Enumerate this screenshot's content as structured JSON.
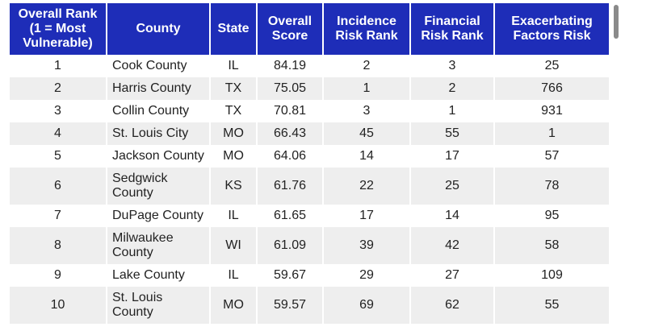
{
  "table": {
    "headers": [
      "Overall Rank (1 = Most Vulnerable)",
      "County",
      "State",
      "Overall Score",
      "Incidence Risk Rank",
      "Financial Risk Rank",
      "Exacerbating Factors Risk"
    ],
    "rows": [
      [
        "1",
        "Cook County",
        "IL",
        "84.19",
        "2",
        "3",
        "25"
      ],
      [
        "2",
        "Harris County",
        "TX",
        "75.05",
        "1",
        "2",
        "766"
      ],
      [
        "3",
        "Collin County",
        "TX",
        "70.81",
        "3",
        "1",
        "931"
      ],
      [
        "4",
        "St. Louis City",
        "MO",
        "66.43",
        "45",
        "55",
        "1"
      ],
      [
        "5",
        "Jackson County",
        "MO",
        "64.06",
        "14",
        "17",
        "57"
      ],
      [
        "6",
        "Sedgwick County",
        "KS",
        "61.76",
        "22",
        "25",
        "78"
      ],
      [
        "7",
        "DuPage County",
        "IL",
        "61.65",
        "17",
        "14",
        "95"
      ],
      [
        "8",
        "Milwaukee County",
        "WI",
        "61.09",
        "39",
        "42",
        "58"
      ],
      [
        "9",
        "Lake County",
        "IL",
        "59.67",
        "29",
        "27",
        "109"
      ],
      [
        "10",
        "St. Louis County",
        "MO",
        "59.57",
        "69",
        "62",
        "55"
      ]
    ]
  },
  "colors": {
    "header_bg": "#1e2db8",
    "header_text": "#ffffff",
    "row_alt_bg": "#eeeeee"
  }
}
